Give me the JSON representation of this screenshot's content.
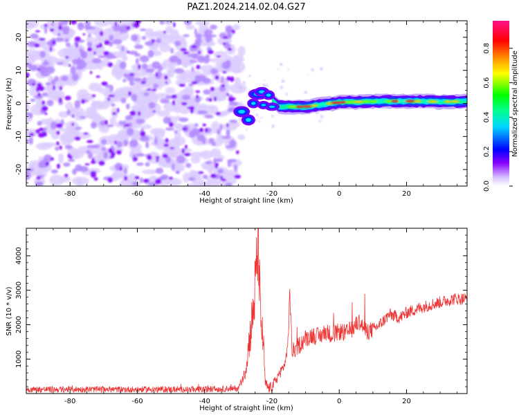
{
  "title": "PAZ1.2024.214.02.04.G27",
  "chart_data": [
    {
      "type": "heatmap",
      "xlabel": "Height of straight line (km)",
      "ylabel": "Frequency (Hz)",
      "xlim": [
        -93,
        38
      ],
      "ylim": [
        -25,
        25
      ],
      "xticks": [
        -80,
        -60,
        -40,
        -20,
        0,
        20
      ],
      "yticks": [
        -20,
        -10,
        0,
        10,
        20
      ],
      "colorbar": {
        "label": "Normalized spectral amplitude",
        "range": [
          0,
          0.96
        ],
        "ticks": [
          0.0,
          0.2,
          0.4,
          0.6,
          0.8
        ],
        "colors": [
          "#ffffff",
          "#d9c6ff",
          "#8800ff",
          "#0000ff",
          "#00d8ff",
          "#00ff00",
          "#ffff00",
          "#ff8800",
          "#ff0000",
          "#ff1188"
        ]
      },
      "noise_region_x": [
        -93,
        -30
      ],
      "signal_center_hz": [
        [
          -30,
          -2.5
        ],
        [
          -26,
          -4.5
        ],
        [
          -24,
          2
        ],
        [
          -22,
          3
        ],
        [
          -18,
          -1
        ],
        [
          -10,
          -1
        ],
        [
          0,
          0.3
        ],
        [
          10,
          0.6
        ],
        [
          20,
          0.7
        ],
        [
          30,
          0.5
        ],
        [
          38,
          0.6
        ]
      ]
    },
    {
      "type": "line",
      "xlabel": "Height of straight line (km)",
      "ylabel": "SNR (10 * v/v)",
      "xlim": [
        -93,
        38
      ],
      "ylim": [
        0,
        4800
      ],
      "xticks": [
        -80,
        -60,
        -40,
        -20,
        0,
        20
      ],
      "yticks": [
        1000,
        2000,
        3000,
        4000
      ],
      "series": [
        {
          "color": "#ee3333",
          "anchors_x": [
            -93,
            -40,
            -30,
            -28,
            -26.5,
            -25.5,
            -24.5,
            -24,
            -23.5,
            -22.5,
            -22,
            -21,
            -20,
            -19,
            -18,
            -17,
            -16,
            -15,
            -14.8,
            -14,
            -12,
            -10,
            -8,
            -6,
            -4,
            -2,
            0,
            2,
            4,
            6,
            8,
            10,
            12,
            15,
            18,
            20,
            23,
            26,
            30,
            34,
            38
          ],
          "anchors_y": [
            120,
            120,
            150,
            600,
            1700,
            2400,
            3700,
            4750,
            2300,
            1400,
            300,
            150,
            200,
            350,
            550,
            700,
            900,
            1700,
            3200,
            1200,
            1400,
            1600,
            1700,
            1650,
            1800,
            1700,
            1800,
            1750,
            1900,
            2100,
            1800,
            1850,
            2000,
            2300,
            2200,
            2350,
            2450,
            2550,
            2650,
            2750,
            2750
          ]
        }
      ]
    }
  ]
}
